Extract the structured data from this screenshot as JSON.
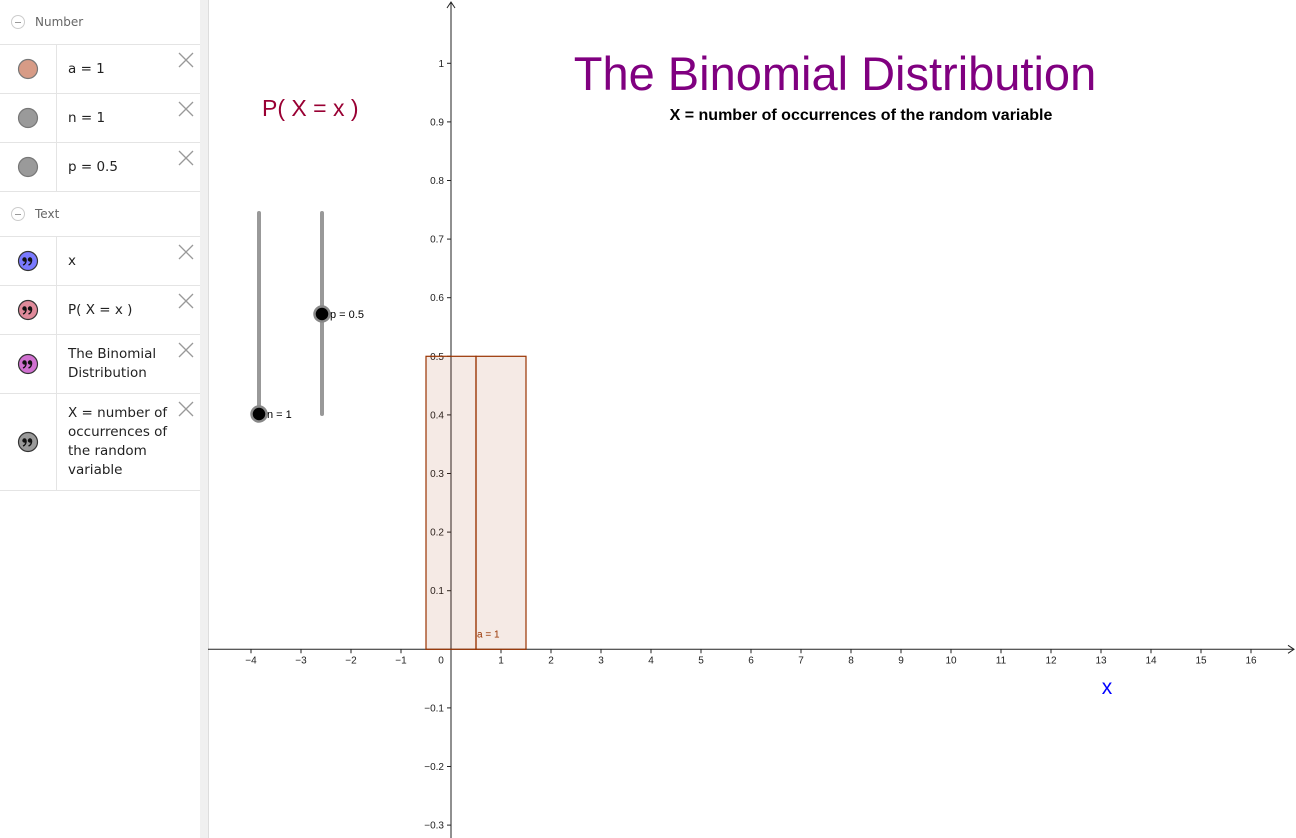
{
  "algebra_view": {
    "groups": [
      {
        "name": "Number",
        "items": [
          {
            "label": "a = 1",
            "icon_color": "#d79b86"
          },
          {
            "label": "n = 1",
            "icon_color": "#9a9a9a"
          },
          {
            "label": "p = 0.5",
            "icon_color": "#9a9a9a"
          }
        ]
      },
      {
        "name": "Text",
        "items": [
          {
            "label": "x",
            "icon_color": "#7a7aff"
          },
          {
            "label": "P( X = x )",
            "icon_color": "#e08a9a"
          },
          {
            "label": "The Binomial Distribution",
            "icon_color": "#d070d0"
          },
          {
            "label": "X = number of occurrences of the random variable",
            "icon_color": "#9a9a9a"
          }
        ]
      }
    ]
  },
  "chart_data": {
    "type": "bar",
    "title": "The Binomial Distribution",
    "subtitle": "X = number of occurrences of the random variable",
    "y_label": "P( X = x )",
    "x_label": "x",
    "bar_label": "a = 1",
    "sliders": [
      {
        "label": "n = 1"
      },
      {
        "label": "p = 0.5"
      }
    ],
    "x": [
      0,
      1
    ],
    "values": [
      0.5,
      0.5
    ],
    "color": "#993300",
    "xlim": [
      -4.86,
      16.9
    ],
    "ylim": [
      -0.322,
      1.108
    ],
    "xticks": [
      {
        "value": -4,
        "label": "−4"
      },
      {
        "value": -3,
        "label": "−3"
      },
      {
        "value": -2,
        "label": "−2"
      },
      {
        "value": -1,
        "label": "−1"
      },
      0,
      1,
      2,
      3,
      4,
      5,
      6,
      7,
      8,
      9,
      10,
      11,
      12,
      13,
      14,
      15,
      16
    ],
    "yticks": [
      {
        "value": -0.3,
        "label": "−0.3"
      },
      {
        "value": -0.2,
        "label": "−0.2"
      },
      {
        "value": -0.1,
        "label": "−0.1"
      },
      0.1,
      0.2,
      0.3,
      0.4,
      0.5,
      0.6,
      0.7,
      0.8,
      0.9,
      1
    ]
  }
}
